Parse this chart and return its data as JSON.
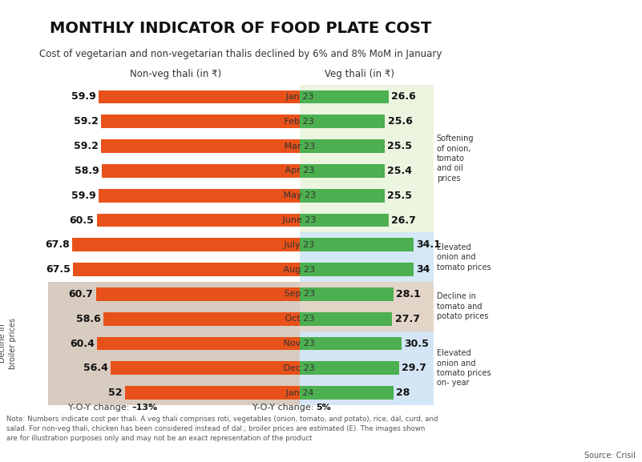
{
  "title": "MONTHLY INDICATOR OF FOOD PLATE COST",
  "subtitle": "Cost of vegetarian and non-vegetarian thalis declined by 6% and 8% MoM in January",
  "months": [
    "Jan 23",
    "Feb 23",
    "Mar 23",
    "Apr 23",
    "May 23",
    "June 23",
    "July 23",
    "Aug 23",
    "Sep 23",
    "Oct 23",
    "Nov 23",
    "Dec 23",
    "Jan 24"
  ],
  "nonveg_values": [
    59.9,
    59.2,
    59.2,
    58.9,
    59.9,
    60.5,
    67.8,
    67.5,
    60.7,
    58.6,
    60.4,
    56.4,
    52.0
  ],
  "veg_values": [
    26.6,
    25.6,
    25.5,
    25.4,
    25.5,
    26.7,
    34.1,
    34.0,
    28.1,
    27.7,
    30.5,
    29.7,
    28.0
  ],
  "nonveg_color": "#E8511A",
  "veg_color": "#4CAF50",
  "nonveg_label": "Non-veg thali (in ₹)",
  "veg_label": "Veg thali (in ₹)",
  "nonveg_yoy_prefix": "Y-O-Y change: ",
  "nonveg_yoy_bold": "–13%",
  "veg_yoy_prefix": "Y-O-Y change: ",
  "veg_yoy_bold": "5%",
  "bg_group1_color": "#EBF5E0",
  "bg_group2_color": "#D4E8F5",
  "bg_group3_color": "#E2D5C8",
  "bg_group4_color": "#D4E5F5",
  "broiler_bg_color": "#D8CBC0",
  "note_line1": "Note: Numbers indicate cost per thali. A veg thali comprises roti, vegetables (onion, tomato, and potato), rice, dal, curd, and",
  "note_line2": "salad. For non-veg thali, chicken has been considered instead of dal.; broiler prices are estimated (E). The images shown",
  "note_line3": "are for illustration purposes only and may not be an exact representation of the product",
  "source": "Source: Crisil",
  "annotations": [
    {
      "text": "Softening\nof onion,\ntomato\nand oil\nprices",
      "rows": [
        0,
        1,
        2,
        3,
        4,
        5
      ]
    },
    {
      "text": "Elevated\nonion and\ntomato prices",
      "rows": [
        6,
        7
      ]
    },
    {
      "text": "Decline in\ntomato and\npotato prices",
      "rows": [
        8,
        9
      ]
    },
    {
      "text": "Elevated\nonion and\ntomato prices\non- year",
      "rows": [
        10,
        11,
        12
      ]
    }
  ],
  "broiler_rows": [
    8,
    9,
    10,
    11,
    12
  ],
  "broiler_label": "Decline in\nbroiler prices",
  "groups": [
    {
      "rows": [
        0,
        1,
        2,
        3,
        4,
        5
      ],
      "left_bg": "#FFFFFF",
      "right_bg": "#EBF5E0"
    },
    {
      "rows": [
        6,
        7
      ],
      "left_bg": "#FFFFFF",
      "right_bg": "#D4E8F5"
    },
    {
      "rows": [
        8,
        9
      ],
      "left_bg": "#D8CBC0",
      "right_bg": "#E2D5C8"
    },
    {
      "rows": [
        10,
        11,
        12
      ],
      "left_bg": "#D8CBC0",
      "right_bg": "#D4E5F5"
    }
  ]
}
